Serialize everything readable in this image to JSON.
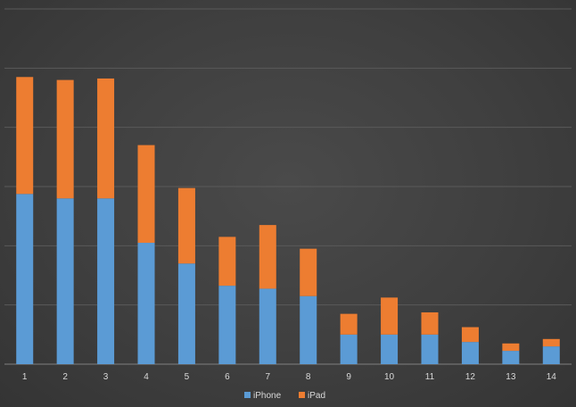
{
  "chart_data": {
    "type": "bar",
    "stacked": true,
    "categories": [
      "1",
      "2",
      "3",
      "4",
      "5",
      "6",
      "7",
      "8",
      "9",
      "10",
      "11",
      "12",
      "13",
      "14"
    ],
    "series": [
      {
        "name": "iPhone",
        "color": "#5b9bd5",
        "values": [
          57.5,
          56,
          56,
          41,
          34,
          26.5,
          25.5,
          23,
          10,
          10,
          10,
          7.5,
          4.5,
          6
        ]
      },
      {
        "name": "iPad",
        "color": "#ed7d31",
        "values": [
          39.5,
          40,
          40.5,
          33,
          25.5,
          16.5,
          21.5,
          16,
          7,
          12.5,
          7.5,
          5,
          2.5,
          2.5
        ]
      }
    ],
    "ylim": [
      0,
      120
    ],
    "y_gridline_step": 20,
    "grid": true,
    "legend": "bottom-center"
  }
}
